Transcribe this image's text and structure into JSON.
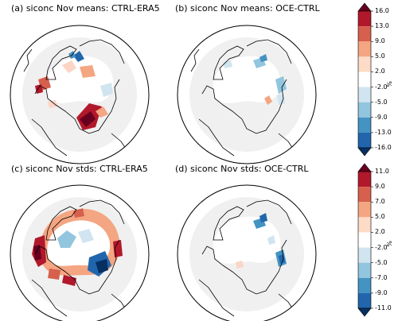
{
  "panels": [
    {
      "title": "(a) siconc Nov means: CTRL-ERA5"
    },
    {
      "title": "(b) siconc Nov means: OCE-CTRL"
    },
    {
      "title": "(c) siconc Nov stds: CTRL-ERA5"
    },
    {
      "title": "(d) siconc Nov stds: OCE-CTRL"
    }
  ],
  "colorbars": [
    {
      "unit": "%",
      "ticks": [
        "16.0",
        "13.0",
        "9.0",
        "5.0",
        "2.0",
        "-2.0",
        "-5.0",
        "-9.0",
        "-13.0",
        "-16.0"
      ],
      "colors": [
        "#67001f",
        "#b2182b",
        "#d6604d",
        "#f4a582",
        "#fddbc7",
        "#ffffff",
        "#d1e5f0",
        "#92c5de",
        "#4393c3",
        "#2166ac",
        "#053061"
      ]
    },
    {
      "unit": "%",
      "ticks": [
        "11.0",
        "9.0",
        "7.0",
        "5.0",
        "2.0",
        "-2.0",
        "-5.0",
        "-7.0",
        "-9.0",
        "-11.0"
      ],
      "colors": [
        "#67001f",
        "#b2182b",
        "#d6604d",
        "#f4a582",
        "#fddbc7",
        "#ffffff",
        "#d1e5f0",
        "#92c5de",
        "#4393c3",
        "#2166ac",
        "#053061"
      ]
    }
  ]
}
